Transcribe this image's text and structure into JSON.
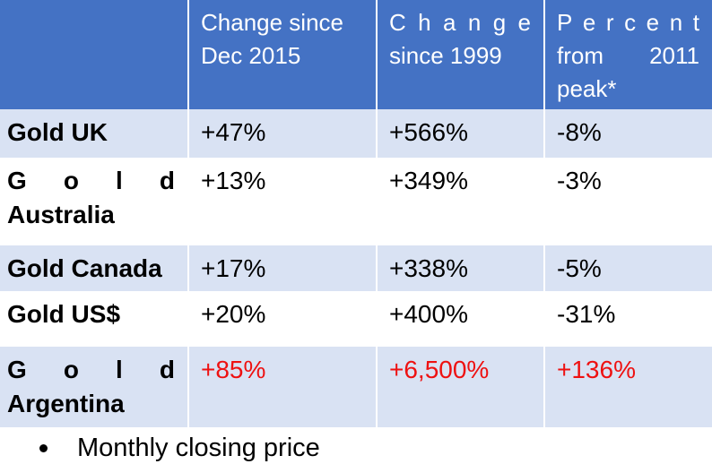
{
  "colors": {
    "header_bg": "#4472C4",
    "header_text": "#FFFFFF",
    "band_bg": "#D9E2F3",
    "row_bg": "#FFFFFF",
    "body_text": "#000000",
    "highlight_text": "#EE1111"
  },
  "table": {
    "columns": [
      {
        "id": "currency",
        "header_lines": []
      },
      {
        "id": "change_since_dec_2015",
        "header_lines": [
          "Change since",
          "Dec 2015"
        ]
      },
      {
        "id": "change_since_1999",
        "header_lines": [
          "Change",
          "since 1999"
        ]
      },
      {
        "id": "percent_from_2011_peak",
        "header_lines": [
          "Percent",
          "from 2011",
          "peak*"
        ]
      }
    ],
    "rows": [
      {
        "label_lines": [
          "Gold UK"
        ],
        "change_since_dec_2015": "+47%",
        "change_since_1999": "+566%",
        "percent_from_2011_peak": "-8%"
      },
      {
        "label_lines": [
          "Gold",
          "Australia"
        ],
        "change_since_dec_2015": "+13%",
        "change_since_1999": "+349%",
        "percent_from_2011_peak": "-3%"
      },
      {
        "label_lines": [
          "Gold Canada"
        ],
        "change_since_dec_2015": "+17%",
        "change_since_1999": "+338%",
        "percent_from_2011_peak": "-5%"
      },
      {
        "label_lines": [
          "Gold US$"
        ],
        "change_since_dec_2015": "+20%",
        "change_since_1999": "+400%",
        "percent_from_2011_peak": "-31%"
      },
      {
        "label_lines": [
          "Gold",
          "Argentina"
        ],
        "change_since_dec_2015": "+85%",
        "change_since_1999": "+6,500%",
        "percent_from_2011_peak": "+136%"
      }
    ]
  },
  "footnote": {
    "marker": "bullet-dot",
    "text": "Monthly closing price"
  }
}
